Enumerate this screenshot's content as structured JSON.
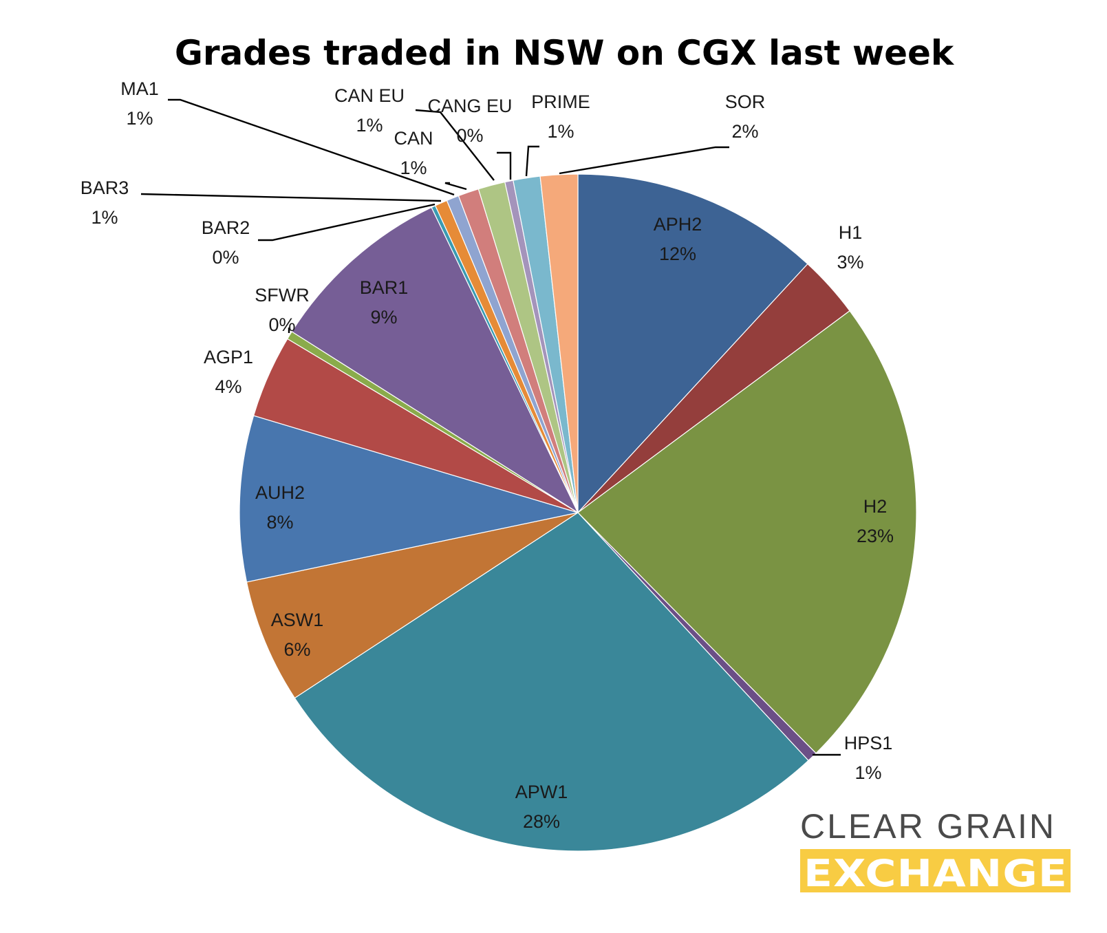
{
  "chart_data": {
    "type": "pie",
    "title": "Grades traded in NSW on CGX last week",
    "start_angle": "12 o'clock",
    "direction": "clockwise",
    "slices": [
      {
        "name": "APH2",
        "value": 12,
        "label": "12%",
        "color": "#3d6394"
      },
      {
        "name": "H1",
        "value": 3,
        "label": "3%",
        "color": "#943e3c"
      },
      {
        "name": "H2",
        "value": 23,
        "label": "23%",
        "color": "#7a9343"
      },
      {
        "name": "HPS1",
        "value": 0.5,
        "label": "1%",
        "color": "#6b4f86"
      },
      {
        "name": "APW1",
        "value": 28,
        "label": "28%",
        "color": "#3a8799"
      },
      {
        "name": "ASW1",
        "value": 6,
        "label": "6%",
        "color": "#c27535"
      },
      {
        "name": "AUH2",
        "value": 8,
        "label": "8%",
        "color": "#4876ae"
      },
      {
        "name": "AGP1",
        "value": 4,
        "label": "4%",
        "color": "#b24a47"
      },
      {
        "name": "SFWR",
        "value": 0.4,
        "label": "0%",
        "color": "#8aab4b"
      },
      {
        "name": "BAR1",
        "value": 9,
        "label": "9%",
        "color": "#765e96"
      },
      {
        "name": "BAR2",
        "value": 0.2,
        "label": "0%",
        "color": "#3a9bb2"
      },
      {
        "name": "BAR3",
        "value": 0.6,
        "label": "1%",
        "color": "#e68b37"
      },
      {
        "name": "MA1",
        "value": 0.6,
        "label": "1%",
        "color": "#8fa4d0"
      },
      {
        "name": "CAN",
        "value": 1,
        "label": "1%",
        "color": "#d17e7c"
      },
      {
        "name": "CAN EU",
        "value": 1.3,
        "label": "1%",
        "color": "#aec584"
      },
      {
        "name": "CANG EU",
        "value": 0.4,
        "label": "0%",
        "color": "#a494bb"
      },
      {
        "name": "PRIME",
        "value": 1.3,
        "label": "1%",
        "color": "#7ab8cd"
      },
      {
        "name": "SOR",
        "value": 1.8,
        "label": "2%",
        "color": "#f5a97a"
      }
    ]
  },
  "logo": {
    "line1": "CLEAR GRAIN",
    "line2": "EXCHANGE",
    "line2_bg": "#f8cc43"
  }
}
